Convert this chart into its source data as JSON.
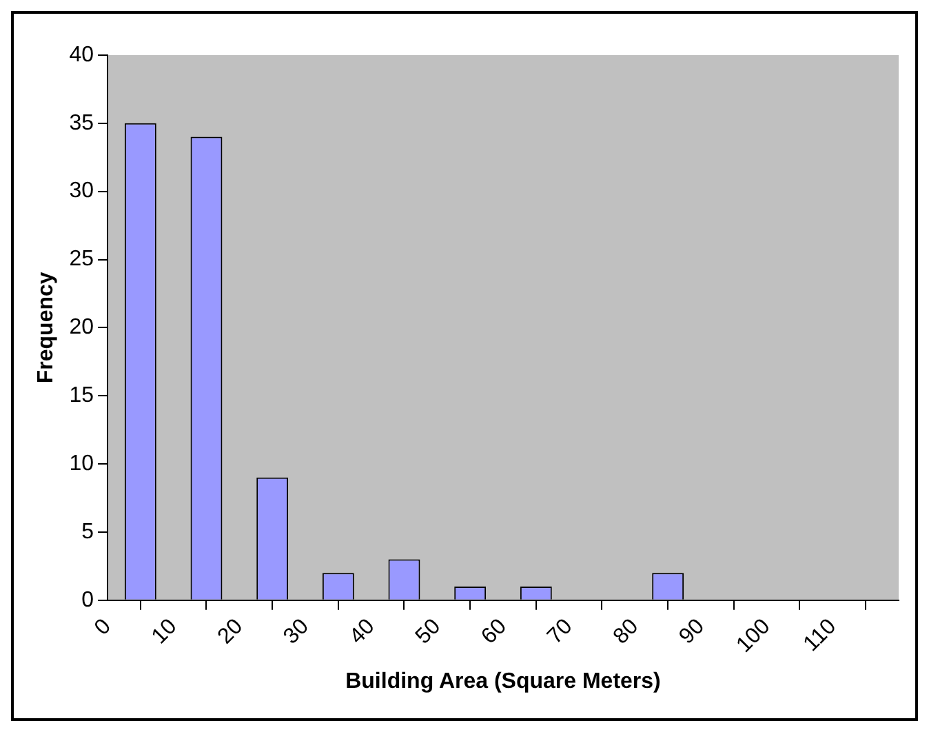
{
  "chart_data": {
    "type": "histogram",
    "xlabel": "Building Area (Square Meters)",
    "ylabel": "Frequency",
    "bins": [
      0,
      10,
      20,
      30,
      40,
      50,
      60,
      70,
      80,
      90,
      100,
      110,
      120
    ],
    "values": [
      35,
      34,
      9,
      2,
      3,
      1,
      1,
      0,
      2,
      0,
      0,
      0
    ],
    "color": "#9999ff",
    "xlim": [
      0,
      120
    ],
    "xticks": [
      0,
      10,
      20,
      30,
      40,
      50,
      60,
      70,
      80,
      90,
      100,
      110
    ],
    "ylim": [
      0,
      40
    ],
    "yticks": [
      0,
      5,
      10,
      15,
      20,
      25,
      30,
      35,
      40
    ],
    "grid": false,
    "legend": false
  }
}
